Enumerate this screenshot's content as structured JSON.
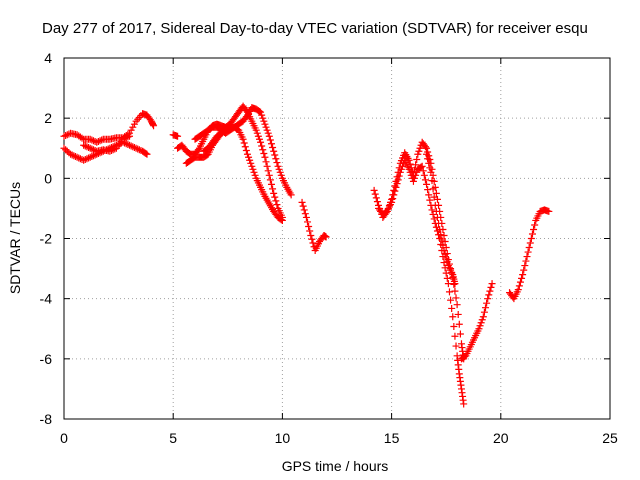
{
  "chart_data": {
    "type": "scatter",
    "title": "Day 277 of 2017, Sidereal Day-to-day VTEC variation (SDTVAR) for receiver esqu",
    "xlabel": "GPS time / hours",
    "ylabel": "SDTVAR / TECUs",
    "xlim": [
      0,
      25
    ],
    "ylim": [
      -8,
      4
    ],
    "x_ticks": [
      0,
      5,
      10,
      15,
      20,
      25
    ],
    "y_ticks": [
      -8,
      -6,
      -4,
      -2,
      0,
      2,
      4
    ],
    "x_tick_labels": [
      "0",
      "5",
      "10",
      "15",
      "20",
      "25"
    ],
    "y_tick_labels": [
      "-8",
      "-6",
      "-4",
      "-2",
      "0",
      "2",
      "4"
    ],
    "grid": true,
    "marker": "+",
    "series": [
      {
        "color": "#ff0000",
        "points": [
          [
            0.0,
            1.4
          ],
          [
            0.3,
            1.5
          ],
          [
            0.6,
            1.45
          ],
          [
            0.9,
            1.3
          ],
          [
            1.2,
            1.3
          ],
          [
            1.5,
            1.2
          ],
          [
            1.8,
            1.3
          ],
          [
            2.1,
            1.3
          ],
          [
            2.4,
            1.35
          ],
          [
            2.7,
            1.35
          ],
          [
            3.0,
            1.5
          ],
          [
            3.3,
            1.9
          ],
          [
            3.6,
            2.15
          ],
          [
            3.8,
            2.1
          ],
          [
            4.0,
            1.9
          ],
          [
            4.1,
            1.75
          ]
        ]
      },
      {
        "color": "#ff0000",
        "points": [
          [
            0.0,
            1.0
          ],
          [
            0.3,
            0.8
          ],
          [
            0.6,
            0.7
          ],
          [
            0.9,
            0.6
          ],
          [
            1.2,
            0.7
          ],
          [
            1.5,
            0.8
          ],
          [
            1.8,
            0.9
          ],
          [
            2.1,
            1.0
          ],
          [
            2.4,
            1.1
          ],
          [
            2.7,
            1.2
          ],
          [
            3.0,
            1.1
          ],
          [
            3.3,
            1.0
          ],
          [
            3.6,
            0.9
          ],
          [
            3.8,
            0.8
          ]
        ]
      },
      {
        "color": "#ff0000",
        "points": [
          [
            0.9,
            1.1
          ],
          [
            1.2,
            1.0
          ],
          [
            1.5,
            0.9
          ],
          [
            1.8,
            0.95
          ],
          [
            2.1,
            0.9
          ],
          [
            2.4,
            1.0
          ],
          [
            2.7,
            1.3
          ],
          [
            3.0,
            1.4
          ]
        ]
      },
      {
        "color": "#ff0000",
        "points": [
          [
            5.0,
            1.45
          ],
          [
            5.2,
            1.4
          ]
        ]
      },
      {
        "color": "#ff0000",
        "points": [
          [
            5.2,
            1.0
          ],
          [
            5.4,
            1.1
          ],
          [
            5.6,
            0.9
          ],
          [
            5.8,
            0.8
          ],
          [
            6.0,
            0.8
          ],
          [
            6.2,
            1.0
          ],
          [
            6.4,
            1.3
          ],
          [
            6.6,
            1.6
          ],
          [
            6.8,
            1.75
          ],
          [
            7.0,
            1.8
          ],
          [
            7.2,
            1.75
          ],
          [
            7.4,
            1.7
          ],
          [
            7.6,
            1.8
          ],
          [
            7.8,
            2.0
          ],
          [
            8.0,
            2.2
          ],
          [
            8.2,
            2.4
          ],
          [
            8.4,
            2.2
          ],
          [
            8.6,
            1.9
          ],
          [
            8.8,
            1.6
          ],
          [
            9.0,
            1.2
          ],
          [
            9.2,
            0.7
          ],
          [
            9.4,
            0.1
          ],
          [
            9.6,
            -0.5
          ],
          [
            9.8,
            -1.0
          ],
          [
            10.0,
            -1.3
          ]
        ]
      },
      {
        "color": "#ff0000",
        "points": [
          [
            5.6,
            0.5
          ],
          [
            5.8,
            0.6
          ],
          [
            6.0,
            0.7
          ],
          [
            6.2,
            0.7
          ],
          [
            6.4,
            0.7
          ],
          [
            6.6,
            0.8
          ],
          [
            6.8,
            1.1
          ],
          [
            7.0,
            1.3
          ],
          [
            7.2,
            1.5
          ],
          [
            7.4,
            1.6
          ],
          [
            7.6,
            1.7
          ],
          [
            7.8,
            1.7
          ],
          [
            8.0,
            1.8
          ],
          [
            8.2,
            1.9
          ],
          [
            8.4,
            2.1
          ],
          [
            8.6,
            2.35
          ],
          [
            8.8,
            2.3
          ],
          [
            9.0,
            2.2
          ],
          [
            9.2,
            1.8
          ],
          [
            9.4,
            1.4
          ],
          [
            9.6,
            0.9
          ],
          [
            9.8,
            0.4
          ],
          [
            10.0,
            0.0
          ],
          [
            10.2,
            -0.3
          ],
          [
            10.4,
            -0.55
          ]
        ]
      },
      {
        "color": "#ff0000",
        "points": [
          [
            6.0,
            1.3
          ],
          [
            6.2,
            1.4
          ],
          [
            6.4,
            1.5
          ],
          [
            6.6,
            1.6
          ],
          [
            6.8,
            1.7
          ],
          [
            7.0,
            1.7
          ],
          [
            7.2,
            1.6
          ],
          [
            7.4,
            1.5
          ],
          [
            7.6,
            1.6
          ],
          [
            7.8,
            1.7
          ],
          [
            8.0,
            1.6
          ],
          [
            8.2,
            1.3
          ],
          [
            8.4,
            0.8
          ],
          [
            8.6,
            0.4
          ],
          [
            8.8,
            0.0
          ],
          [
            9.0,
            -0.3
          ],
          [
            9.2,
            -0.6
          ],
          [
            9.4,
            -0.85
          ],
          [
            9.6,
            -1.1
          ],
          [
            9.8,
            -1.3
          ],
          [
            10.0,
            -1.4
          ]
        ]
      },
      {
        "color": "#ff0000",
        "points": [
          [
            6.4,
            0.9
          ],
          [
            6.6,
            1.0
          ],
          [
            6.8,
            1.2
          ],
          [
            7.0,
            1.4
          ],
          [
            7.2,
            1.5
          ],
          [
            7.4,
            1.65
          ]
        ]
      },
      {
        "color": "#ff0000",
        "points": [
          [
            10.9,
            -0.8
          ],
          [
            11.1,
            -1.3
          ],
          [
            11.3,
            -1.9
          ],
          [
            11.5,
            -2.4
          ],
          [
            11.7,
            -2.1
          ],
          [
            11.9,
            -1.9
          ],
          [
            12.0,
            -1.95
          ]
        ]
      },
      {
        "color": "#ff0000",
        "points": [
          [
            14.2,
            -0.4
          ],
          [
            14.4,
            -0.9
          ],
          [
            14.6,
            -1.3
          ],
          [
            14.8,
            -1.1
          ],
          [
            15.0,
            -0.7
          ],
          [
            15.2,
            -0.1
          ],
          [
            15.4,
            0.5
          ],
          [
            15.6,
            0.85
          ],
          [
            15.8,
            0.6
          ],
          [
            16.0,
            0.1
          ],
          [
            16.2,
            0.8
          ],
          [
            16.4,
            1.2
          ],
          [
            16.6,
            1.0
          ],
          [
            16.8,
            0.5
          ],
          [
            17.0,
            -0.3
          ],
          [
            17.2,
            -1.1
          ],
          [
            17.4,
            -1.9
          ],
          [
            17.6,
            -2.7
          ],
          [
            17.8,
            -3.3
          ],
          [
            18.0,
            -4.2
          ],
          [
            18.2,
            -5.5
          ],
          [
            18.3,
            -6.0
          ]
        ]
      },
      {
        "color": "#ff0000",
        "points": [
          [
            14.4,
            -1.0
          ],
          [
            14.6,
            -1.2
          ],
          [
            14.8,
            -1.1
          ],
          [
            15.0,
            -0.8
          ],
          [
            15.2,
            -0.3
          ],
          [
            15.4,
            0.2
          ],
          [
            15.6,
            0.6
          ],
          [
            15.8,
            0.3
          ],
          [
            16.0,
            -0.1
          ],
          [
            16.2,
            0.3
          ],
          [
            16.4,
            0.4
          ],
          [
            16.6,
            -0.2
          ],
          [
            16.8,
            -0.9
          ],
          [
            17.0,
            -1.5
          ],
          [
            17.2,
            -2.0
          ],
          [
            17.4,
            -2.8
          ],
          [
            17.6,
            -3.5
          ],
          [
            17.8,
            -4.6
          ],
          [
            18.0,
            -5.9
          ],
          [
            18.1,
            -6.5
          ],
          [
            18.2,
            -7.0
          ],
          [
            18.3,
            -7.5
          ]
        ]
      },
      {
        "color": "#ff0000",
        "points": [
          [
            16.6,
            0.8
          ],
          [
            16.8,
            0.2
          ],
          [
            17.0,
            -0.9
          ],
          [
            17.2,
            -1.7
          ],
          [
            17.4,
            -2.4
          ],
          [
            17.6,
            -2.9
          ],
          [
            17.8,
            -3.2
          ],
          [
            17.9,
            -3.5
          ]
        ]
      },
      {
        "color": "#ff0000",
        "points": [
          [
            18.2,
            -6.0
          ],
          [
            18.4,
            -5.9
          ],
          [
            18.6,
            -5.6
          ],
          [
            18.8,
            -5.3
          ],
          [
            19.0,
            -5.0
          ],
          [
            19.2,
            -4.6
          ],
          [
            19.4,
            -4.0
          ],
          [
            19.6,
            -3.5
          ]
        ]
      },
      {
        "color": "#ff0000",
        "points": [
          [
            20.4,
            -3.8
          ],
          [
            20.6,
            -4.0
          ],
          [
            20.8,
            -3.7
          ],
          [
            21.0,
            -3.2
          ],
          [
            21.2,
            -2.6
          ],
          [
            21.4,
            -2.0
          ],
          [
            21.6,
            -1.4
          ],
          [
            21.8,
            -1.1
          ],
          [
            22.0,
            -1.05
          ],
          [
            22.2,
            -1.1
          ]
        ]
      }
    ]
  }
}
